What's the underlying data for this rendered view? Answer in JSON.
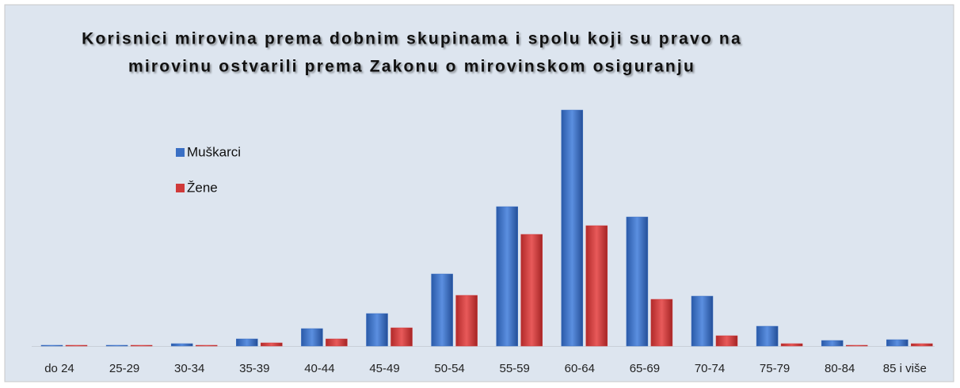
{
  "chart_data": {
    "type": "bar",
    "title": [
      "Korisnici mirovina prema dobnim skupinama i spolu koji su pravo na",
      "mirovinu ostvarili prema Zakonu o mirovinskom osiguranju"
    ],
    "categories": [
      "do 24",
      "25-29",
      "30-34",
      "35-39",
      "40-44",
      "45-49",
      "50-54",
      "55-59",
      "60-64",
      "65-69",
      "70-74",
      "75-79",
      "80-84",
      "85 i više"
    ],
    "series": [
      {
        "name": "Muškarci",
        "color": "#3a6fc4",
        "values": [
          1,
          1,
          3,
          9,
          22,
          41,
          91,
          176,
          298,
          163,
          63,
          25,
          7,
          8
        ]
      },
      {
        "name": "Žene",
        "color": "#d03a3a",
        "values": [
          1,
          1,
          1,
          4,
          9,
          23,
          64,
          141,
          152,
          59,
          13,
          3,
          1,
          3
        ]
      }
    ],
    "ylim": [
      0,
      310
    ]
  }
}
